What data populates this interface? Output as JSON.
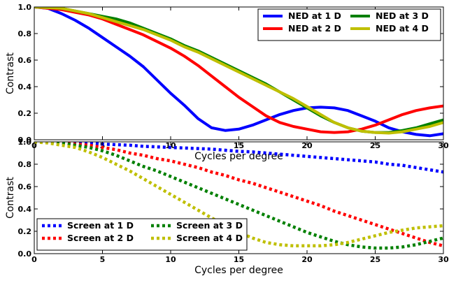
{
  "chart_data": [
    {
      "type": "line",
      "title": "",
      "xlabel": "Cycles per degree",
      "ylabel": "Contrast",
      "xlim": [
        0,
        30
      ],
      "ylim": [
        0.0,
        1.0
      ],
      "x_ticks": [
        "0",
        "5",
        "10",
        "15",
        "20",
        "25",
        "30"
      ],
      "y_ticks": [
        "0.0",
        "0.2",
        "0.4",
        "0.6",
        "0.8",
        "1.0"
      ],
      "line_style": "solid",
      "grid": false,
      "legend_position": "top-right",
      "legend_columns": 2,
      "series": [
        {
          "name": "NED at 1 D",
          "color": "#0000ff",
          "x": [
            0,
            1,
            2,
            3,
            4,
            5,
            6,
            7,
            8,
            9,
            10,
            11,
            12,
            13,
            14,
            15,
            16,
            17,
            18,
            19,
            20,
            21,
            22,
            23,
            24,
            25,
            26,
            27,
            28,
            29,
            30
          ],
          "y": [
            1.0,
            0.99,
            0.95,
            0.9,
            0.84,
            0.77,
            0.7,
            0.63,
            0.55,
            0.45,
            0.35,
            0.26,
            0.16,
            0.09,
            0.07,
            0.08,
            0.11,
            0.15,
            0.19,
            0.22,
            0.24,
            0.245,
            0.24,
            0.22,
            0.18,
            0.14,
            0.09,
            0.06,
            0.04,
            0.03,
            0.045
          ]
        },
        {
          "name": "NED at 2 D",
          "color": "#ff0000",
          "x": [
            0,
            1,
            2,
            3,
            4,
            5,
            6,
            7,
            8,
            9,
            10,
            11,
            12,
            13,
            14,
            15,
            16,
            17,
            18,
            19,
            20,
            21,
            22,
            23,
            24,
            25,
            26,
            27,
            28,
            29,
            30
          ],
          "y": [
            1.0,
            0.99,
            0.98,
            0.96,
            0.94,
            0.91,
            0.87,
            0.83,
            0.79,
            0.74,
            0.69,
            0.63,
            0.56,
            0.48,
            0.4,
            0.32,
            0.25,
            0.18,
            0.13,
            0.1,
            0.08,
            0.06,
            0.055,
            0.06,
            0.08,
            0.11,
            0.15,
            0.19,
            0.22,
            0.24,
            0.255
          ]
        },
        {
          "name": "NED at 3 D",
          "color": "#008000",
          "x": [
            0,
            1,
            2,
            3,
            4,
            5,
            6,
            7,
            8,
            9,
            10,
            11,
            12,
            13,
            14,
            15,
            16,
            17,
            18,
            19,
            20,
            21,
            22,
            23,
            24,
            25,
            26,
            27,
            28,
            29,
            30
          ],
          "y": [
            1.0,
            0.995,
            0.99,
            0.97,
            0.95,
            0.93,
            0.91,
            0.88,
            0.84,
            0.8,
            0.76,
            0.71,
            0.67,
            0.62,
            0.57,
            0.52,
            0.47,
            0.42,
            0.36,
            0.3,
            0.24,
            0.18,
            0.13,
            0.09,
            0.065,
            0.055,
            0.055,
            0.07,
            0.09,
            0.12,
            0.15
          ]
        },
        {
          "name": "NED at 4 D",
          "color": "#bfbf00",
          "x": [
            0,
            1,
            2,
            3,
            4,
            5,
            6,
            7,
            8,
            9,
            10,
            11,
            12,
            13,
            14,
            15,
            16,
            17,
            18,
            19,
            20,
            21,
            22,
            23,
            24,
            25,
            26,
            27,
            28,
            29,
            30
          ],
          "y": [
            1.0,
            0.995,
            0.99,
            0.97,
            0.95,
            0.92,
            0.89,
            0.86,
            0.83,
            0.79,
            0.75,
            0.7,
            0.66,
            0.61,
            0.56,
            0.51,
            0.46,
            0.41,
            0.36,
            0.31,
            0.25,
            0.19,
            0.13,
            0.09,
            0.065,
            0.055,
            0.05,
            0.06,
            0.08,
            0.1,
            0.13
          ]
        }
      ]
    },
    {
      "type": "line",
      "title": "",
      "xlabel": "Cycles per degree",
      "ylabel": "Contrast",
      "xlim": [
        0,
        30
      ],
      "ylim": [
        0.0,
        1.0
      ],
      "x_ticks": [
        "0",
        "5",
        "10",
        "15",
        "20",
        "25",
        "30"
      ],
      "y_ticks": [
        "0.0",
        "0.2",
        "0.4",
        "0.6",
        "0.8",
        "1.0"
      ],
      "line_style": "dotted",
      "grid": false,
      "legend_position": "bottom-left",
      "legend_columns": 2,
      "series": [
        {
          "name": "Screen at 1 D",
          "color": "#0000ff",
          "x": [
            0,
            1,
            2,
            3,
            4,
            5,
            6,
            7,
            8,
            9,
            10,
            11,
            12,
            13,
            14,
            15,
            16,
            17,
            18,
            19,
            20,
            21,
            22,
            23,
            24,
            25,
            26,
            27,
            28,
            29,
            30
          ],
          "y": [
            1.0,
            1.0,
            0.995,
            0.99,
            0.99,
            0.98,
            0.975,
            0.97,
            0.96,
            0.955,
            0.95,
            0.945,
            0.94,
            0.935,
            0.925,
            0.915,
            0.91,
            0.9,
            0.89,
            0.88,
            0.87,
            0.86,
            0.85,
            0.84,
            0.83,
            0.82,
            0.8,
            0.79,
            0.77,
            0.75,
            0.73
          ]
        },
        {
          "name": "Screen at 2 D",
          "color": "#ff0000",
          "x": [
            0,
            1,
            2,
            3,
            4,
            5,
            6,
            7,
            8,
            9,
            10,
            11,
            12,
            13,
            14,
            15,
            16,
            17,
            18,
            19,
            20,
            21,
            22,
            23,
            24,
            25,
            26,
            27,
            28,
            29,
            30
          ],
          "y": [
            1.0,
            1.0,
            0.995,
            0.98,
            0.97,
            0.95,
            0.93,
            0.9,
            0.88,
            0.85,
            0.83,
            0.8,
            0.77,
            0.73,
            0.7,
            0.66,
            0.63,
            0.59,
            0.55,
            0.51,
            0.47,
            0.43,
            0.38,
            0.34,
            0.3,
            0.26,
            0.22,
            0.18,
            0.14,
            0.1,
            0.07
          ]
        },
        {
          "name": "Screen at 3 D",
          "color": "#008000",
          "x": [
            0,
            1,
            2,
            3,
            4,
            5,
            6,
            7,
            8,
            9,
            10,
            11,
            12,
            13,
            14,
            15,
            16,
            17,
            18,
            19,
            20,
            21,
            22,
            23,
            24,
            25,
            26,
            27,
            28,
            29,
            30
          ],
          "y": [
            1.0,
            1.0,
            0.99,
            0.97,
            0.95,
            0.92,
            0.88,
            0.83,
            0.78,
            0.74,
            0.69,
            0.64,
            0.59,
            0.54,
            0.49,
            0.44,
            0.39,
            0.34,
            0.29,
            0.24,
            0.19,
            0.15,
            0.11,
            0.08,
            0.06,
            0.05,
            0.05,
            0.06,
            0.08,
            0.11,
            0.14
          ]
        },
        {
          "name": "Screen at 4 D",
          "color": "#bfbf00",
          "x": [
            0,
            1,
            2,
            3,
            4,
            5,
            6,
            7,
            8,
            9,
            10,
            11,
            12,
            13,
            14,
            15,
            16,
            17,
            18,
            19,
            20,
            21,
            22,
            23,
            24,
            25,
            26,
            27,
            28,
            29,
            30
          ],
          "y": [
            1.0,
            0.99,
            0.97,
            0.95,
            0.91,
            0.86,
            0.8,
            0.74,
            0.67,
            0.6,
            0.53,
            0.46,
            0.39,
            0.32,
            0.25,
            0.19,
            0.14,
            0.1,
            0.08,
            0.07,
            0.07,
            0.07,
            0.08,
            0.1,
            0.13,
            0.16,
            0.19,
            0.21,
            0.23,
            0.24,
            0.25
          ]
        }
      ]
    }
  ]
}
